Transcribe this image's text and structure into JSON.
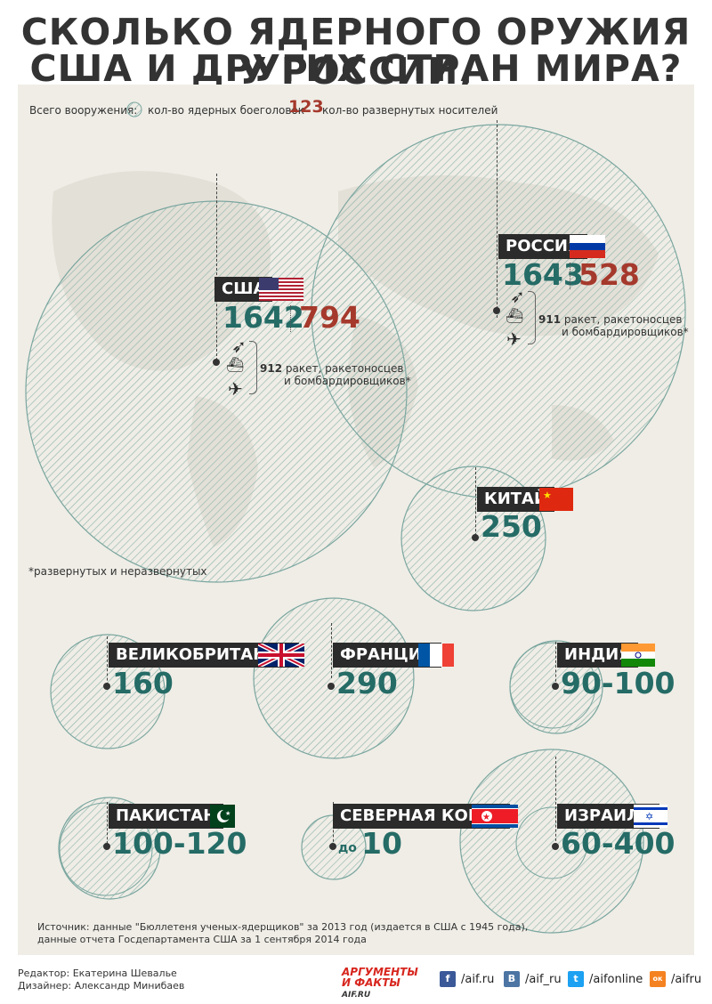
{
  "title": {
    "line1": "СКОЛЬКО ЯДЕРНОГО ОРУЖИЯ У РОССИИ,",
    "line2": "США И ДРУГИХ СТРАН МИРА?"
  },
  "legend": {
    "prefix": "Всего вооружения:",
    "warheads_label": "кол-во ядерных боеголовок",
    "carriers_sample": "123",
    "carriers_label": "кол-во развернутых носителей"
  },
  "countries": {
    "usa": {
      "name": "США",
      "warheads": "1642",
      "carriers": "794",
      "carrier_count": "912",
      "carrier_text1": "ракет, ракетоносцев",
      "carrier_text2": "и бомбардировщиков*"
    },
    "russia": {
      "name": "РОССИЯ",
      "warheads": "1643",
      "carriers": "528",
      "carrier_count": "911",
      "carrier_text1": "ракет, ракетоносцев",
      "carrier_text2": "и бомбардировщиков*"
    },
    "china": {
      "name": "КИТАЙ",
      "warheads": "250"
    },
    "uk": {
      "name": "ВЕЛИКОБРИТАНИЯ",
      "warheads": "160"
    },
    "france": {
      "name": "ФРАНЦИЯ",
      "warheads": "290"
    },
    "india": {
      "name": "ИНДИЯ",
      "warheads": "90-100"
    },
    "pakistan": {
      "name": "ПАКИСТАН",
      "warheads": "100-120"
    },
    "north_korea": {
      "name": "СЕВЕРНАЯ КОРЕЯ",
      "prefix": "до",
      "warheads": "10"
    },
    "israel": {
      "name": "ИЗРАИЛЬ",
      "warheads": "60-400"
    }
  },
  "footnote": "*развернутых и неразвернутых",
  "source": {
    "line1": "Источник: данные \"Бюллетеня ученых-ядерщиков\" за 2013 год (издается в США с 1945 года),",
    "line2": "данные отчета Госдепартамента США за 1 сентября 2014 года"
  },
  "credits": {
    "editor": "Редактор: Екатерина Шевалье",
    "designer": "Дизайнер: Александр Минибаев"
  },
  "brand": {
    "line1": "АРГУМЕНТЫ",
    "line2": "И ФАКТЫ",
    "domain": "AIF.RU"
  },
  "social": [
    {
      "icon": "facebook-icon",
      "glyph": "f",
      "label": "/aif.ru",
      "color": "#3b5998"
    },
    {
      "icon": "vk-icon",
      "glyph": "В",
      "label": "/aif_ru",
      "color": "#4c75a3"
    },
    {
      "icon": "twitter-icon",
      "glyph": "t",
      "label": "/aifonline",
      "color": "#1da1f2"
    },
    {
      "icon": "odnoklassniki-icon",
      "glyph": "ок",
      "label": "/aifru",
      "color": "#f58220"
    }
  ],
  "colors": {
    "warheads": "#256b66",
    "carriers": "#a5392c",
    "label_bg": "#2b2b2b",
    "panel_bg": "#efede6"
  }
}
